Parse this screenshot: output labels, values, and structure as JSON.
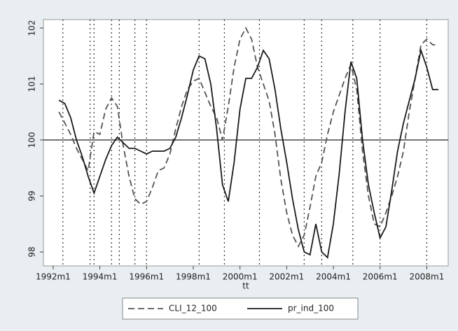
{
  "chart_data": {
    "type": "line",
    "xlabel": "tt",
    "x": [
      "1992m4",
      "1992m7",
      "1992m10",
      "1993m1",
      "1993m4",
      "1993m7",
      "1993m10",
      "1994m1",
      "1994m4",
      "1994m7",
      "1994m10",
      "1995m1",
      "1995m4",
      "1995m7",
      "1995m10",
      "1996m1",
      "1996m4",
      "1996m7",
      "1996m10",
      "1997m1",
      "1997m4",
      "1997m7",
      "1997m10",
      "1998m1",
      "1998m4",
      "1998m7",
      "1998m10",
      "1999m1",
      "1999m4",
      "1999m7",
      "1999m10",
      "2000m1",
      "2000m4",
      "2000m7",
      "2000m10",
      "2001m1",
      "2001m4",
      "2001m7",
      "2001m10",
      "2002m1",
      "2002m4",
      "2002m7",
      "2002m10",
      "2003m1",
      "2003m4",
      "2003m7",
      "2003m10",
      "2004m1",
      "2004m4",
      "2004m7",
      "2004m10",
      "2005m1",
      "2005m4",
      "2005m7",
      "2005m10",
      "2006m1",
      "2006m4",
      "2006m7",
      "2006m10",
      "2007m1",
      "2007m4",
      "2007m7",
      "2007m10",
      "2008m1",
      "2008m4",
      "2008m7"
    ],
    "series": [
      {
        "name": "CLI_12_100",
        "color": "#555555",
        "style": "dashed",
        "values": [
          100.5,
          100.3,
          100.1,
          99.85,
          99.65,
          99.45,
          100.15,
          100.1,
          100.55,
          100.75,
          100.6,
          99.9,
          99.35,
          98.95,
          98.85,
          98.9,
          99.15,
          99.45,
          99.5,
          99.75,
          100.2,
          100.6,
          100.9,
          101.05,
          101.1,
          100.85,
          100.6,
          100.4,
          100.0,
          100.6,
          101.3,
          101.8,
          102.0,
          101.8,
          101.3,
          101.0,
          100.7,
          100.1,
          99.3,
          98.7,
          98.3,
          98.1,
          98.3,
          98.8,
          99.35,
          99.6,
          100.1,
          100.5,
          100.8,
          101.1,
          101.35,
          100.9,
          99.8,
          99.0,
          98.5,
          98.45,
          98.7,
          99.0,
          99.35,
          99.8,
          100.5,
          101.1,
          101.7,
          101.8,
          101.7,
          101.7
        ]
      },
      {
        "name": "pr_ind_100",
        "color": "#1a1a1a",
        "style": "solid",
        "values": [
          100.71,
          100.65,
          100.4,
          100.0,
          99.7,
          99.35,
          99.05,
          99.35,
          99.65,
          99.9,
          100.05,
          99.95,
          99.85,
          99.85,
          99.8,
          99.75,
          99.8,
          99.8,
          99.8,
          99.85,
          100.05,
          100.4,
          100.8,
          101.25,
          101.5,
          101.45,
          101.0,
          100.2,
          99.2,
          98.9,
          99.6,
          100.55,
          101.1,
          101.1,
          101.3,
          101.6,
          101.45,
          100.9,
          100.2,
          99.6,
          98.95,
          98.4,
          98.0,
          97.95,
          98.5,
          98.0,
          97.9,
          98.5,
          99.4,
          100.5,
          101.4,
          101.1,
          100.0,
          99.2,
          98.7,
          98.25,
          98.45,
          99.1,
          99.8,
          100.3,
          100.7,
          101.1,
          101.6,
          101.3,
          100.9,
          100.9
        ]
      }
    ],
    "xlim": [
      "1991m8",
      "2008m12"
    ],
    "xticks": [
      "1992m1",
      "1994m1",
      "1996m1",
      "1998m1",
      "2000m1",
      "2002m1",
      "2004m1",
      "2006m1",
      "2008m1"
    ],
    "ylim": [
      97.75,
      102.15
    ],
    "yticks": [
      98,
      99,
      100,
      101,
      102
    ],
    "xlines": [
      "1992m6",
      "1993m8",
      "1993m10",
      "1994m7",
      "1994m11",
      "1995m7",
      "1996m1",
      "1998m4",
      "1999m5",
      "2000m11",
      "2002m10",
      "2003m7",
      "2004m11",
      "2006m1",
      "2008m1"
    ],
    "ylines": [
      100
    ],
    "legend": "bottom"
  }
}
